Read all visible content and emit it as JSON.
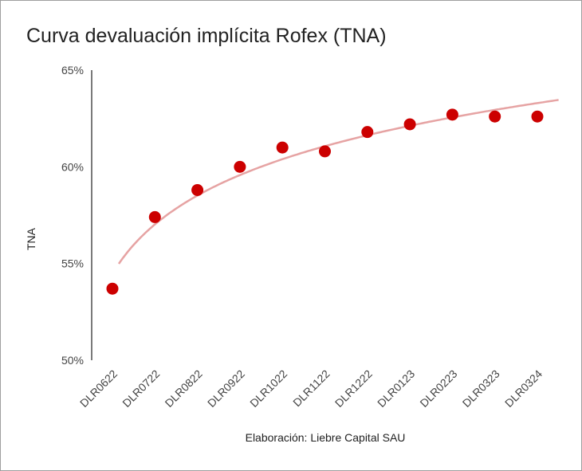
{
  "chart_data": {
    "type": "scatter",
    "title": "Curva devaluación implícita Rofex (TNA)",
    "xlabel": "Elaboración: Liebre Capital SAU",
    "ylabel": "TNA",
    "categories": [
      "DLR0622",
      "DLR0722",
      "DLR0822",
      "DLR0922",
      "DLR1022",
      "DLR1122",
      "DLR1222",
      "DLR0123",
      "DLR0223",
      "DLR0323",
      "DLR0324"
    ],
    "values": [
      53.7,
      57.4,
      58.8,
      60.0,
      61.0,
      60.8,
      61.8,
      62.2,
      62.7,
      62.6,
      62.6
    ],
    "ylim": [
      50,
      65
    ],
    "yticks": [
      "50%",
      "55%",
      "60%",
      "65%"
    ],
    "trendline": "logarithmic",
    "marker_color": "#cc0000",
    "trendline_color": "#e6a3a3",
    "legend": "none",
    "grid": false
  }
}
